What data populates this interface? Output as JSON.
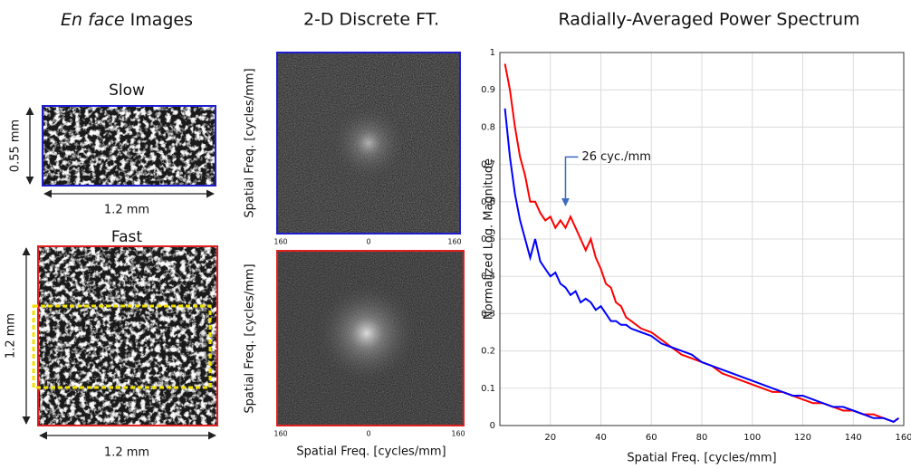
{
  "en_face": {
    "title_em": "En face",
    "title": "Images",
    "slow": {
      "label": "Slow",
      "height": "0.55 mm",
      "width": "1.2 mm"
    },
    "fast": {
      "label": "Fast",
      "height": "1.2 mm",
      "width": "1.2 mm"
    }
  },
  "ft": {
    "title": "2-D Discrete FT.",
    "x_label": "Spatial Freq. [cycles/mm]",
    "panels": [
      {
        "y_label": "Spatial Freq. [cycles/mm]",
        "ticks": [
          "160",
          "0",
          "160"
        ]
      },
      {
        "y_label": "Spatial Freq. [cycles/mm]",
        "ticks": [
          "160",
          "0",
          "160"
        ]
      }
    ]
  },
  "chart_data": {
    "type": "line",
    "title": "Radially-Averaged Power Spectrum",
    "x_label": "Spatial Freq. [cycles/mm]",
    "y_label": "Normalized Log. Magnitude",
    "annotation": "26 cyc./mm",
    "x": [
      2,
      4,
      6,
      8,
      10,
      12,
      14,
      16,
      18,
      20,
      22,
      24,
      26,
      28,
      30,
      32,
      34,
      36,
      38,
      40,
      42,
      44,
      46,
      48,
      50,
      52,
      56,
      60,
      64,
      68,
      72,
      76,
      80,
      84,
      88,
      92,
      96,
      100,
      104,
      108,
      112,
      116,
      120,
      124,
      128,
      132,
      136,
      140,
      144,
      148,
      152,
      156,
      158
    ],
    "series": [
      {
        "color": "#ff0000",
        "values": [
          0.97,
          0.9,
          0.8,
          0.72,
          0.67,
          0.6,
          0.6,
          0.57,
          0.55,
          0.56,
          0.53,
          0.55,
          0.53,
          0.56,
          0.53,
          0.5,
          0.47,
          0.5,
          0.45,
          0.42,
          0.38,
          0.37,
          0.33,
          0.32,
          0.29,
          0.28,
          0.26,
          0.25,
          0.23,
          0.21,
          0.19,
          0.18,
          0.17,
          0.16,
          0.14,
          0.13,
          0.12,
          0.11,
          0.1,
          0.09,
          0.09,
          0.08,
          0.07,
          0.06,
          0.06,
          0.05,
          0.04,
          0.04,
          0.03,
          0.03,
          0.02,
          0.01,
          0.02
        ]
      },
      {
        "color": "#0000ff",
        "values": [
          0.85,
          0.72,
          0.62,
          0.55,
          0.5,
          0.45,
          0.5,
          0.44,
          0.42,
          0.4,
          0.41,
          0.38,
          0.37,
          0.35,
          0.36,
          0.33,
          0.34,
          0.33,
          0.31,
          0.32,
          0.3,
          0.28,
          0.28,
          0.27,
          0.27,
          0.26,
          0.25,
          0.24,
          0.22,
          0.21,
          0.2,
          0.19,
          0.17,
          0.16,
          0.15,
          0.14,
          0.13,
          0.12,
          0.11,
          0.1,
          0.09,
          0.08,
          0.08,
          0.07,
          0.06,
          0.05,
          0.05,
          0.04,
          0.03,
          0.02,
          0.02,
          0.01,
          0.02
        ]
      }
    ],
    "xlim": [
      0,
      160
    ],
    "ylim": [
      0,
      1
    ],
    "xticks": [
      20,
      40,
      60,
      80,
      100,
      120,
      140,
      160
    ],
    "yticks": [
      0,
      0.1,
      0.2,
      0.3,
      0.4,
      0.5,
      0.6,
      0.7,
      0.8,
      0.9,
      1
    ],
    "grid": true
  }
}
